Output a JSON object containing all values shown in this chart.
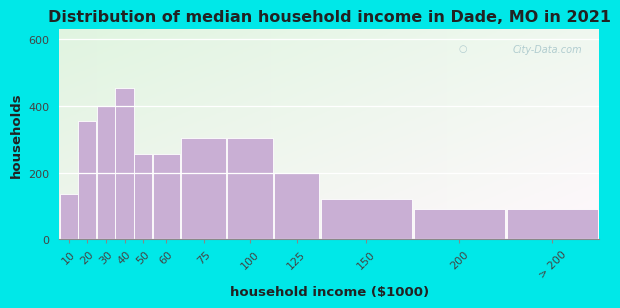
{
  "title": "Distribution of median household income in Dade, MO in 2021",
  "xlabel": "household income ($1000)",
  "ylabel": "households",
  "categories": [
    "10",
    "20",
    "30",
    "40",
    "50",
    "60",
    "75",
    "100",
    "125",
    "150",
    "200",
    "> 200"
  ],
  "values": [
    135,
    355,
    400,
    455,
    255,
    255,
    305,
    305,
    200,
    120,
    90,
    90
  ],
  "bar_left_edges": [
    10,
    20,
    30,
    40,
    50,
    60,
    75,
    100,
    125,
    150,
    200,
    250
  ],
  "bar_widths": [
    10,
    10,
    10,
    10,
    10,
    15,
    25,
    25,
    25,
    50,
    50,
    50
  ],
  "bar_color": "#c9afd4",
  "bar_edge_color": "#ffffff",
  "ylim": [
    0,
    630
  ],
  "yticks": [
    0,
    200,
    400,
    600
  ],
  "xlim": [
    10,
    300
  ],
  "background_outer": "#00e8e8",
  "background_plot_top": "#d6ecd4",
  "background_plot_bottom": "#f5fbf0",
  "watermark": "City-Data.com",
  "title_fontsize": 11.5,
  "axis_label_fontsize": 9.5,
  "tick_fontsize": 8
}
